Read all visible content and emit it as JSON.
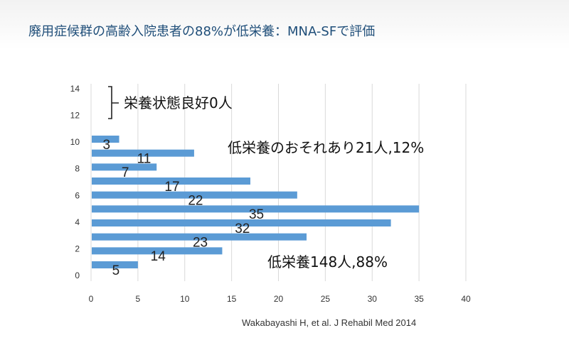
{
  "slide": {
    "title": "廃用症候群の高齢入院患者の88%が低栄養：MNA-SFで評価",
    "citation": "Wakabayashi H, et al. J Rehabil Med 2014"
  },
  "chart_data": {
    "type": "bar",
    "orientation": "horizontal",
    "x_ticks": [
      0,
      5,
      10,
      15,
      20,
      25,
      30,
      35,
      40
    ],
    "y_ticks": [
      0,
      2,
      4,
      6,
      8,
      10,
      12,
      14
    ],
    "xlim": [
      0,
      40
    ],
    "ylim": [
      0,
      14
    ],
    "grid": "vertical",
    "values": [
      5,
      14,
      23,
      32,
      35,
      22,
      17,
      7,
      11,
      3
    ],
    "bar_color": "#5b9bd5",
    "annotations": {
      "well_nourished": "栄養状態良好0人",
      "at_risk": "低栄養のおそれあり21人,12%",
      "malnourished": "低栄養148人,88%"
    }
  }
}
